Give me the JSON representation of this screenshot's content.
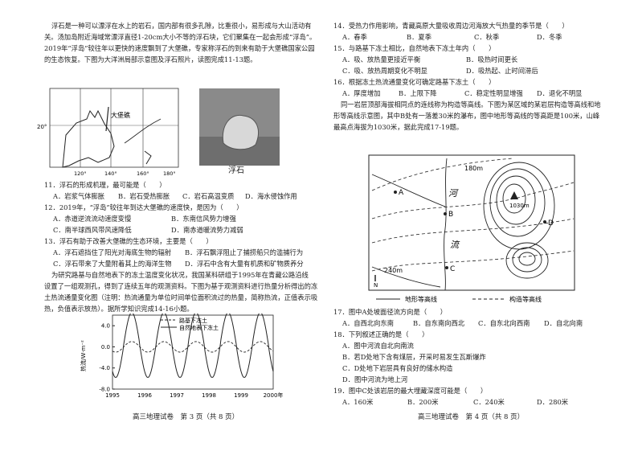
{
  "left": {
    "intro": [
      "浮石是一种可以漂浮在水上的岩石，国内部有很多孔隙，比重很小，易形成与大山活动有",
      "关。汤加岛附近海域常漂浮直径1-20cm大小不等的浮石块，它们聚集在一起会形成“浮岛”。",
      "2019年“浮岛”较往年以更快的速度飘到了大堡礁，专家称浮石的到来有助于大堡礁国家公园",
      "的生态恢复。下图为大洋洲局部示意图及浮石照片，读图完成11-13题。"
    ],
    "map_labels": {
      "lat": "20°",
      "lon": [
        "120°",
        "140°",
        "160°",
        "180°"
      ],
      "reef": "大堡礁"
    },
    "photo_caption": "浮石",
    "q11": {
      "stem": "11．浮石的形成机理，最可能是（　　）",
      "opts": [
        "A．岩浆气体膨胀",
        "B．岩石受热膨胀",
        "C．岩石高温变质",
        "D．海水侵蚀作用"
      ]
    },
    "q12": {
      "stem": "12．2019年，“浮岛”较往年到达大堡礁的速度快，是因为（　　）",
      "opts": [
        "A．赤道逆流流动速度变慢",
        "B．东南信风势力增强",
        "C．南半球西风带风速降低",
        "D．南赤道暖流势力减弱"
      ]
    },
    "q13": {
      "stem": "13．浮石有助于改善大堡礁的生态环境，主要是（　　）",
      "opts": [
        "A．浮石遮挡住了阳光对海底生物的辐射",
        "B．浮石飘浮阻止了捕捞船只的滥捕行为",
        "C．浮石带来了大量附着其上的海洋生物",
        "D．浮石中含有大量有机质和矿物质养分"
      ]
    },
    "para2": [
      "为研究路基与自然地表下的冻土温度变化状况，我国某科研组于1995年在青藏公路沿线",
      "设置了一组观测孔，得到了连续五年的观测资料。下图为基于观测资料进行热量分析得出的冻",
      "土热流通量变化图（注明：热流通量为单位时间单位面积流过的热量，简称热流，正值表示吸",
      "热，负值表示放热）。据所学知识完成14-16小题。"
    ],
    "footer": "高三地理试卷　第 3 页（共 8 页）"
  },
  "chart_data": {
    "type": "line",
    "ylabel": "热流/W·m⁻²",
    "yticks": [
      "4.0",
      "0.0",
      "-4.0",
      "-8.0"
    ],
    "ylim": [
      -8,
      6
    ],
    "xticks": [
      "1995",
      "1996",
      "1997",
      "1998",
      "1999",
      "2000年"
    ],
    "series": [
      {
        "name": "路基下冻土",
        "style": "dashed",
        "amplitude": 1
      },
      {
        "name": "自然地表下冻土",
        "style": "solid",
        "amplitude": 6
      }
    ]
  },
  "right": {
    "q14": {
      "stem": "14．受热力作用影响，青藏高原大量吸收周边河海放大气热量的季节是（　　）",
      "opts": [
        "A．春季",
        "B．夏季",
        "C．秋季",
        "D．冬季"
      ]
    },
    "q15": {
      "stem": "15．与路基下冻土相比，自然地表下冻土年内（　　）",
      "opts": [
        "A．吸、放热量更接近平衡",
        "B．吸热时间更长",
        "C．吸、放热周期变化不明显",
        "D．吸热起、止时间滞后"
      ]
    },
    "q16": {
      "stem": "16．根据冻土热流通量变化可确定路基下冻土（　　）",
      "opts": [
        "A．厚度增加",
        "B．上限下降",
        "C．稳定性明显增强",
        "D．退化不明显"
      ]
    },
    "para3": [
      "同一岩层顶部海拔相同点的连线称为构造等高线。下图为某区域的某岩层构造等高线和地",
      "形等高线示意图，其中B处有一落差30米的瀑布，图中地形等高线的等高距是100米，山峰",
      "最高点海拔为1030米，据此完成17-19题。"
    ],
    "map": {
      "labels": [
        "A",
        "B",
        "C",
        "D"
      ],
      "river": [
        "河",
        "流"
      ],
      "c180": "180m",
      "c240": "240m",
      "peak": "1030m",
      "north": "N",
      "legend": [
        "地形等高线",
        "构造等高线"
      ]
    },
    "q17": {
      "stem": "17．图中A处坡面径流方向是（　　）",
      "opts": [
        "A．自西北向东南",
        "B．自东南向西北",
        "C．自东北向西南",
        "D．自北向南"
      ]
    },
    "q18": {
      "stem": "18．下列叙述正确的是（　　）",
      "opts": [
        "A．图中河流自北向南流",
        "B．若D处地下含有煤层，开采时易发生瓦斯爆炸",
        "C．D处地下岩层具有良好的储水构造",
        "D．图中河流为地上河"
      ]
    },
    "q19": {
      "stem": "19．图中C处该岩层的最大埋藏深度可能是（　　）",
      "opts": [
        "A．160米",
        "B．200米",
        "C．240米",
        "D．280米"
      ]
    },
    "footer": "高三地理试卷　第 4 页（共 8 页）"
  }
}
